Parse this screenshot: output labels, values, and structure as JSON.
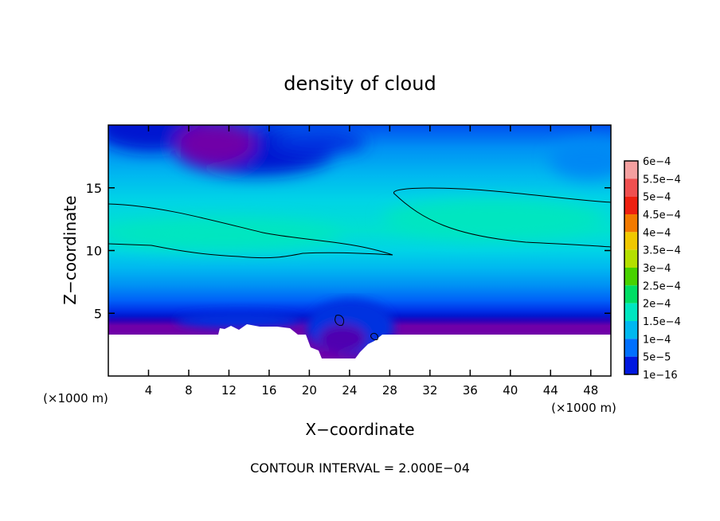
{
  "chart_data": {
    "type": "heatmap",
    "title": "density of cloud",
    "xlabel": "X−coordinate",
    "ylabel": "Z−coordinate",
    "x_unit_label": "(×1000 m)",
    "y_unit_label": "(×1000 m)",
    "footer": "CONTOUR INTERVAL = 2.000E−04",
    "xlim": [
      0,
      50
    ],
    "ylim": [
      0,
      20
    ],
    "x_ticks": [
      4,
      8,
      12,
      16,
      20,
      24,
      28,
      32,
      36,
      40,
      44,
      48
    ],
    "y_ticks": [
      5,
      10,
      15
    ],
    "colorbar": {
      "levels": [
        {
          "label": "6e−4",
          "color": "#f4a0a0"
        },
        {
          "label": "5.5e−4",
          "color": "#f05050"
        },
        {
          "label": "5e−4",
          "color": "#ee2010"
        },
        {
          "label": "4.5e−4",
          "color": "#f27a00"
        },
        {
          "label": "4e−4",
          "color": "#f0c800"
        },
        {
          "label": "3.5e−4",
          "color": "#b4e000"
        },
        {
          "label": "3e−4",
          "color": "#48d200"
        },
        {
          "label": "2.5e−4",
          "color": "#00de64"
        },
        {
          "label": "2e−4",
          "color": "#00e6c0"
        },
        {
          "label": "1.5e−4",
          "color": "#00b8f0"
        },
        {
          "label": "1e−4",
          "color": "#0070ff"
        },
        {
          "label": "5e−5",
          "color": "#0018e0"
        },
        {
          "label": "1e−16",
          "color": "#7000a8"
        }
      ]
    },
    "contour_level": "2e−4",
    "terrain_top_z": 3.5,
    "valley_x": [
      19,
      28
    ],
    "valley_floor_z": 1.5
  }
}
